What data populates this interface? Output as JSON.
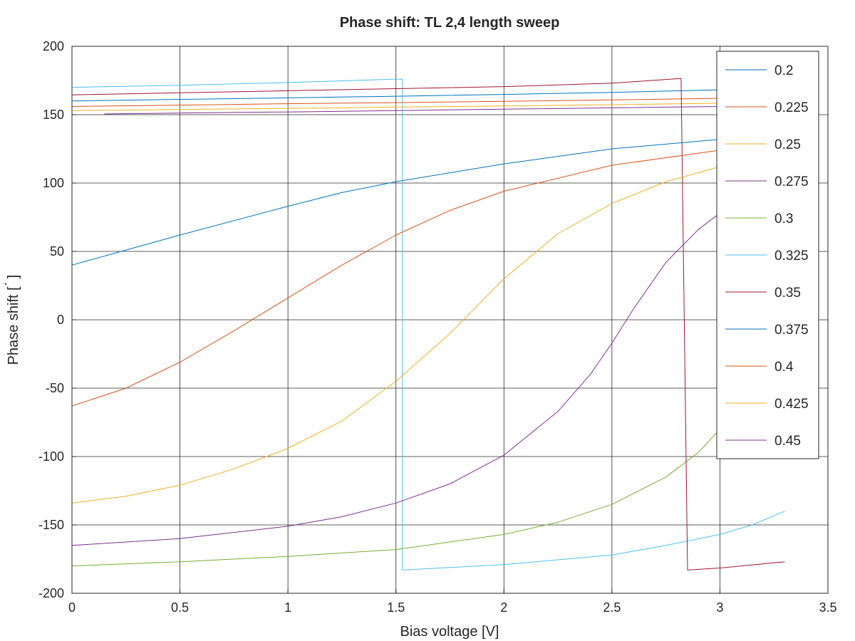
{
  "chart_data": {
    "type": "line",
    "title": "Phase shift: TL 2,4 length sweep",
    "xlabel": "Bias voltage [V]",
    "ylabel": "Phase shift [ ́ ]",
    "xlim": [
      0,
      3.5
    ],
    "ylim": [
      -200,
      200
    ],
    "xticks": [
      "0",
      "0.5",
      "1",
      "1.5",
      "2",
      "2.5",
      "3",
      "3.5"
    ],
    "yticks": [
      "200",
      "150",
      "100",
      "50",
      "0",
      "-50",
      "-100",
      "-150",
      "-200"
    ],
    "grid": true,
    "legend_position": "top-right",
    "series": [
      {
        "name": "0.2",
        "color": "#0072bd",
        "x": [
          0,
          0.5,
          1,
          1.5,
          2,
          2.5,
          3,
          3.3
        ],
        "y": [
          160,
          161.2,
          162.3,
          163.5,
          164.8,
          166.3,
          168.2,
          170
        ]
      },
      {
        "name": "0.225",
        "color": "#d95319",
        "x": [
          0,
          0.5,
          1,
          1.5,
          2,
          2.5,
          3,
          3.3
        ],
        "y": [
          156,
          157,
          158,
          158.8,
          159.8,
          160.8,
          162,
          163
        ]
      },
      {
        "name": "0.25",
        "color": "#edb120",
        "x": [
          0,
          0.5,
          1,
          1.5,
          2,
          2.5,
          3,
          3.3
        ],
        "y": [
          153,
          153.8,
          154.6,
          155.5,
          156.4,
          157.3,
          158.4,
          159
        ]
      },
      {
        "name": "0.275",
        "color": "#7e2f8e",
        "x": [
          0.15,
          0.5,
          1,
          1.5,
          2,
          2.5,
          3,
          3.3
        ],
        "y": [
          150.5,
          151.2,
          152,
          153,
          154,
          155,
          156,
          157
        ]
      },
      {
        "name": "0.3",
        "color": "#77ac30",
        "x": [
          0,
          0.5,
          1,
          1.5,
          2,
          2.25,
          2.5,
          2.75,
          2.9,
          3.0,
          3.1,
          3.2,
          3.3
        ],
        "y": [
          -180,
          -177,
          -173,
          -168,
          -157,
          -148,
          -135,
          -115,
          -97,
          -80,
          -57,
          -27,
          5
        ]
      },
      {
        "name": "0.325",
        "color": "#4dbeee",
        "x": [
          0,
          0.5,
          1,
          1.5,
          1.53,
          1.53,
          2,
          2.5,
          2.75,
          3,
          3.15,
          3.3
        ],
        "y": [
          170,
          171.5,
          173.5,
          176,
          176,
          -183,
          -179,
          -172,
          -165,
          -157,
          -150,
          -140
        ]
      },
      {
        "name": "0.35",
        "color": "#a2142f",
        "x": [
          0,
          0.5,
          1,
          1.5,
          2,
          2.5,
          2.82,
          2.85,
          3,
          3.3
        ],
        "y": [
          164.5,
          166,
          167.5,
          169,
          170.5,
          173,
          176.5,
          -183,
          -181.5,
          -177
        ]
      },
      {
        "name": "0.375",
        "color": "#0072bd",
        "x": [
          0,
          0.25,
          0.5,
          1,
          1.25,
          1.5,
          2,
          2.5,
          3,
          3.3
        ],
        "y": [
          40,
          51,
          62,
          83,
          93,
          101,
          114,
          125,
          132,
          135
        ]
      },
      {
        "name": "0.4",
        "color": "#d95319",
        "x": [
          0,
          0.25,
          0.5,
          0.75,
          1,
          1.25,
          1.5,
          1.75,
          2,
          2.5,
          3,
          3.3
        ],
        "y": [
          -63,
          -50,
          -31,
          -8,
          16,
          40,
          62,
          80,
          94,
          113,
          124,
          130
        ]
      },
      {
        "name": "0.425",
        "color": "#edb120",
        "x": [
          0,
          0.25,
          0.5,
          0.75,
          1,
          1.25,
          1.5,
          1.75,
          2,
          2.25,
          2.5,
          2.75,
          3,
          3.3
        ],
        "y": [
          -134,
          -129,
          -121,
          -109,
          -94,
          -74,
          -45,
          -10,
          30,
          63,
          85,
          101,
          112,
          121
        ]
      },
      {
        "name": "0.45",
        "color": "#7e2f8e",
        "x": [
          0,
          0.5,
          1,
          1.25,
          1.5,
          1.75,
          2,
          2.25,
          2.4,
          2.5,
          2.6,
          2.75,
          2.9,
          3.0,
          3.15,
          3.3
        ],
        "y": [
          -165,
          -160,
          -151,
          -144,
          -134,
          -120,
          -99,
          -67,
          -40,
          -17,
          8,
          42,
          66,
          78,
          91,
          100
        ]
      }
    ]
  }
}
